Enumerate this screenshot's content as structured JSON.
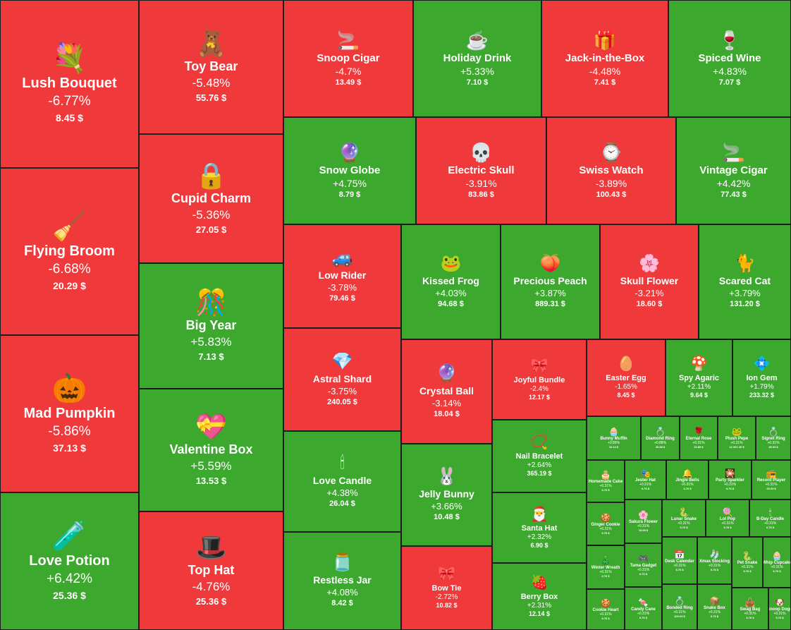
{
  "heatmap": {
    "tiles": [
      {
        "name": "Lush Bouquet",
        "change": "-6.77%",
        "price": "8.45 $",
        "icon": "💐",
        "icon_name": "bouquet-icon",
        "trend": "down"
      },
      {
        "name": "Flying Broom",
        "change": "-6.68%",
        "price": "20.29 $",
        "icon": "🧹",
        "icon_name": "broom-icon",
        "trend": "down"
      },
      {
        "name": "Mad Pumpkin",
        "change": "-5.86%",
        "price": "37.13 $",
        "icon": "🎃",
        "icon_name": "pumpkin-icon",
        "trend": "down"
      },
      {
        "name": "Love Potion",
        "change": "+6.42%",
        "price": "25.36 $",
        "icon": "🧪",
        "icon_name": "potion-icon",
        "trend": "up"
      },
      {
        "name": "Toy Bear",
        "change": "-5.48%",
        "price": "55.76 $",
        "icon": "🧸",
        "icon_name": "teddy-bear-icon",
        "trend": "down"
      },
      {
        "name": "Cupid Charm",
        "change": "-5.36%",
        "price": "27.05 $",
        "icon": "🔒",
        "icon_name": "heart-lock-icon",
        "trend": "down"
      },
      {
        "name": "Big Year",
        "change": "+5.83%",
        "price": "7.13 $",
        "icon": "🎊",
        "icon_name": "big-year-icon",
        "trend": "up"
      },
      {
        "name": "Valentine Box",
        "change": "+5.59%",
        "price": "13.53 $",
        "icon": "💝",
        "icon_name": "heart-box-icon",
        "trend": "up"
      },
      {
        "name": "Top Hat",
        "change": "-4.76%",
        "price": "25.36 $",
        "icon": "🎩",
        "icon_name": "top-hat-icon",
        "trend": "down"
      },
      {
        "name": "Snoop Cigar",
        "change": "-4.7%",
        "price": "13.49 $",
        "icon": "🚬",
        "icon_name": "cigar-icon",
        "trend": "down"
      },
      {
        "name": "Holiday Drink",
        "change": "+5.33%",
        "price": "7.10 $",
        "icon": "☕",
        "icon_name": "holiday-drink-icon",
        "trend": "up"
      },
      {
        "name": "Jack-in-the-Box",
        "change": "-4.48%",
        "price": "7.41 $",
        "icon": "🎁",
        "icon_name": "jack-in-box-icon",
        "trend": "down"
      },
      {
        "name": "Spiced Wine",
        "change": "+4.83%",
        "price": "7.07 $",
        "icon": "🍷",
        "icon_name": "wine-glass-icon",
        "trend": "up"
      },
      {
        "name": "Snow Globe",
        "change": "+4.75%",
        "price": "8.79 $",
        "icon": "🔮",
        "icon_name": "snow-globe-icon",
        "trend": "up"
      },
      {
        "name": "Electric Skull",
        "change": "-3.91%",
        "price": "83.86 $",
        "icon": "💀",
        "icon_name": "skull-icon",
        "trend": "down"
      },
      {
        "name": "Swiss Watch",
        "change": "-3.89%",
        "price": "100.43 $",
        "icon": "⌚",
        "icon_name": "watch-icon",
        "trend": "down"
      },
      {
        "name": "Vintage Cigar",
        "change": "+4.42%",
        "price": "77.43 $",
        "icon": "🚬",
        "icon_name": "vintage-cigar-icon",
        "trend": "up"
      },
      {
        "name": "Low Rider",
        "change": "-3.78%",
        "price": "79.46 $",
        "icon": "🚙",
        "icon_name": "car-icon",
        "trend": "down"
      },
      {
        "name": "Kissed Frog",
        "change": "+4.03%",
        "price": "94.68 $",
        "icon": "🐸",
        "icon_name": "frog-icon",
        "trend": "up"
      },
      {
        "name": "Precious Peach",
        "change": "+3.87%",
        "price": "889.31 $",
        "icon": "🍑",
        "icon_name": "peach-icon",
        "trend": "up"
      },
      {
        "name": "Skull Flower",
        "change": "-3.21%",
        "price": "18.60 $",
        "icon": "🌸",
        "icon_name": "flower-icon",
        "trend": "down"
      },
      {
        "name": "Scared Cat",
        "change": "+3.79%",
        "price": "131.20 $",
        "icon": "🐈",
        "icon_name": "black-cat-icon",
        "trend": "up"
      },
      {
        "name": "Astral Shard",
        "change": "-3.75%",
        "price": "240.05 $",
        "icon": "💎",
        "icon_name": "crystal-shard-icon",
        "trend": "down"
      },
      {
        "name": "Crystal Ball",
        "change": "-3.14%",
        "price": "18.04 $",
        "icon": "🔮",
        "icon_name": "crystal-ball-icon",
        "trend": "down"
      },
      {
        "name": "Joyful Bundle",
        "change": "-2.4%",
        "price": "12.17 $",
        "icon": "🎀",
        "icon_name": "gift-bundle-icon",
        "trend": "down"
      },
      {
        "name": "Easter Egg",
        "change": "-1.65%",
        "price": "8.45 $",
        "icon": "🥚",
        "icon_name": "easter-egg-icon",
        "trend": "down"
      },
      {
        "name": "Spy Agaric",
        "change": "+2.11%",
        "price": "9.64 $",
        "icon": "🍄",
        "icon_name": "mushroom-icon",
        "trend": "up"
      },
      {
        "name": "Ion Gem",
        "change": "+1.79%",
        "price": "233.32 $",
        "icon": "💠",
        "icon_name": "gem-icon",
        "trend": "up"
      },
      {
        "name": "Love Candle",
        "change": "+4.38%",
        "price": "26.04 $",
        "icon": "🕯",
        "icon_name": "candle-icon",
        "trend": "up"
      },
      {
        "name": "Jelly Bunny",
        "change": "+3.66%",
        "price": "10.48 $",
        "icon": "🐰",
        "icon_name": "bunny-icon",
        "trend": "up"
      },
      {
        "name": "Restless Jar",
        "change": "+4.08%",
        "price": "8.42 $",
        "icon": "🫙",
        "icon_name": "jar-icon",
        "trend": "up"
      },
      {
        "name": "Bow Tie",
        "change": "-2.72%",
        "price": "10.82 $",
        "icon": "🎀",
        "icon_name": "bow-tie-icon",
        "trend": "down"
      },
      {
        "name": "Nail Bracelet",
        "change": "+2.64%",
        "price": "365.19 $",
        "icon": "📿",
        "icon_name": "bracelet-icon",
        "trend": "up"
      },
      {
        "name": "Santa Hat",
        "change": "+2.32%",
        "price": "6.90 $",
        "icon": "🎅",
        "icon_name": "santa-hat-icon",
        "trend": "up"
      },
      {
        "name": "Berry Box",
        "change": "+2.31%",
        "price": "12.14 $",
        "icon": "🍓",
        "icon_name": "berry-box-icon",
        "trend": "up"
      },
      {
        "name": "Bunny Muffin",
        "change": "+0.89%",
        "price": "10.14 $",
        "icon": "🧁",
        "icon_name": "muffin-icon",
        "trend": "up"
      },
      {
        "name": "Diamond Ring",
        "change": "+0.88%",
        "price": "20.88 $",
        "icon": "💍",
        "icon_name": "ring-icon",
        "trend": "up"
      },
      {
        "name": "Eternal Rose",
        "change": "+0.31%",
        "price": "10.89 $",
        "icon": "🌹",
        "icon_name": "rose-icon",
        "trend": "up"
      },
      {
        "name": "Plush Pepe",
        "change": "+0.31%",
        "price": "12 397.40 $",
        "icon": "🐸",
        "icon_name": "plush-pepe-icon",
        "trend": "up"
      },
      {
        "name": "Signet Ring",
        "change": "+0.31%",
        "price": "49.33 $",
        "icon": "💍",
        "icon_name": "signet-ring-icon",
        "trend": "up"
      },
      {
        "name": "Homemade Cake",
        "change": "+0.31%",
        "price": "6.76 $",
        "icon": "🎂",
        "icon_name": "cake-icon",
        "trend": "up"
      },
      {
        "name": "Jester Hat",
        "change": "+0.31%",
        "price": "6.76 $",
        "icon": "🎭",
        "icon_name": "jester-hat-icon",
        "trend": "up"
      },
      {
        "name": "Jingle Bells",
        "change": "+0.31%",
        "price": "6.76 $",
        "icon": "🔔",
        "icon_name": "bells-icon",
        "trend": "up"
      },
      {
        "name": "Party Sparkler",
        "change": "+0.31%",
        "price": "6.76 $",
        "icon": "🎇",
        "icon_name": "sparkler-icon",
        "trend": "up"
      },
      {
        "name": "Record Player",
        "change": "+0.31%",
        "price": "29.03 $",
        "icon": "📻",
        "icon_name": "record-player-icon",
        "trend": "up"
      },
      {
        "name": "Ginger Cookie",
        "change": "+0.31%",
        "price": "6.76 $",
        "icon": "🍪",
        "icon_name": "cookie-icon",
        "trend": "up"
      },
      {
        "name": "Sakura Flower",
        "change": "+0.31%",
        "price": "13.69 $",
        "icon": "🌸",
        "icon_name": "sakura-icon",
        "trend": "up"
      },
      {
        "name": "Lunar Snake",
        "change": "+0.31%",
        "price": "6.76 $",
        "icon": "🐍",
        "icon_name": "snake-icon",
        "trend": "up"
      },
      {
        "name": "Lol Pop",
        "change": "+0.31%",
        "price": "6.76 $",
        "icon": "🍭",
        "icon_name": "lollipop-icon",
        "trend": "up"
      },
      {
        "name": "B-Day Candle",
        "change": "+0.31%",
        "price": "6.76 $",
        "icon": "🕯",
        "icon_name": "bday-candle-icon",
        "trend": "up"
      },
      {
        "name": "Winter Wreath",
        "change": "+0.31%",
        "price": "6.76 $",
        "icon": "🎄",
        "icon_name": "wreath-icon",
        "trend": "up"
      },
      {
        "name": "Tama Gadget",
        "change": "+0.31%",
        "price": "6.76 $",
        "icon": "🎮",
        "icon_name": "gadget-icon",
        "trend": "up"
      },
      {
        "name": "Desk Calendar",
        "change": "+0.31%",
        "price": "6.76 $",
        "icon": "📅",
        "icon_name": "calendar-icon",
        "trend": "up"
      },
      {
        "name": "Xmas Stocking",
        "change": "+0.31%",
        "price": "6.76 $",
        "icon": "🧦",
        "icon_name": "stocking-icon",
        "trend": "up"
      },
      {
        "name": "Pet Snake",
        "change": "+0.31%",
        "price": "6.76 $",
        "icon": "🐍",
        "icon_name": "pet-snake-icon",
        "trend": "up"
      },
      {
        "name": "Whip Cupcake",
        "change": "+0.31%",
        "price": "6.76 $",
        "icon": "🧁",
        "icon_name": "cupcake-icon",
        "trend": "up"
      },
      {
        "name": "Cookie Heart",
        "change": "+0.31%",
        "price": "6.76 $",
        "icon": "🍪",
        "icon_name": "cookie-heart-icon",
        "trend": "up"
      },
      {
        "name": "Candy Cane",
        "change": "+0.31%",
        "price": "6.76 $",
        "icon": "🍬",
        "icon_name": "candy-cane-icon",
        "trend": "up"
      },
      {
        "name": "Bonded Ring",
        "change": "+0.31%",
        "price": "100.03 $",
        "icon": "💍",
        "icon_name": "bonded-ring-icon",
        "trend": "up"
      },
      {
        "name": "Snake Box",
        "change": "+0.31%",
        "price": "6.76 $",
        "icon": "📦",
        "icon_name": "snake-box-icon",
        "trend": "up"
      },
      {
        "name": "Snoop Dogg",
        "change": "+0.31%",
        "price": "6.76 $",
        "icon": "🐶",
        "icon_name": "snoop-dogg-icon",
        "trend": "up"
      },
      {
        "name": "Swag Bag",
        "change": "+0.31%",
        "price": "6.76 $",
        "icon": "👜",
        "icon_name": "swag-bag-icon",
        "trend": "up"
      }
    ]
  }
}
